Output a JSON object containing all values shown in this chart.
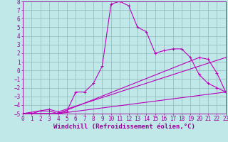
{
  "xlabel": "Windchill (Refroidissement éolien,°C)",
  "xlim": [
    0,
    23
  ],
  "ylim": [
    -5,
    8
  ],
  "xticks": [
    0,
    1,
    2,
    3,
    4,
    5,
    6,
    7,
    8,
    9,
    10,
    11,
    12,
    13,
    14,
    15,
    16,
    17,
    18,
    19,
    20,
    21,
    22,
    23
  ],
  "yticks": [
    8,
    7,
    6,
    5,
    4,
    3,
    2,
    1,
    0,
    -1,
    -2,
    -3,
    -4,
    -5
  ],
  "background_color": "#c0e8e8",
  "grid_color": "#90b8b8",
  "line_color": "#bb00bb",
  "line1_x": [
    0,
    1,
    2,
    3,
    4,
    5,
    6,
    7,
    8,
    9,
    10,
    11,
    12,
    13,
    14,
    15,
    16,
    17,
    18,
    19,
    20,
    21,
    22,
    23
  ],
  "line1_y": [
    -5,
    -5,
    -4.7,
    -4.7,
    -5,
    -4.7,
    -2.5,
    -2.5,
    -1.5,
    0.5,
    7.7,
    8,
    7.5,
    5.0,
    4.5,
    2.0,
    2.3,
    2.5,
    2.5,
    1.5,
    -0.5,
    -1.5,
    -2.0,
    -2.5
  ],
  "line2_x": [
    0,
    3,
    4,
    23
  ],
  "line2_y": [
    -5,
    -5,
    -5,
    -2.5
  ],
  "line3_x": [
    0,
    3,
    4,
    23
  ],
  "line3_y": [
    -5,
    -4.5,
    -4.8,
    1.5
  ],
  "line4_x": [
    0,
    3,
    4,
    20,
    21,
    22,
    23
  ],
  "line4_y": [
    -5,
    -5,
    -5,
    1.5,
    1.3,
    -0.3,
    -2.5
  ],
  "font_color": "#990099",
  "tick_fontsize": 5.5,
  "label_fontsize": 6.5
}
